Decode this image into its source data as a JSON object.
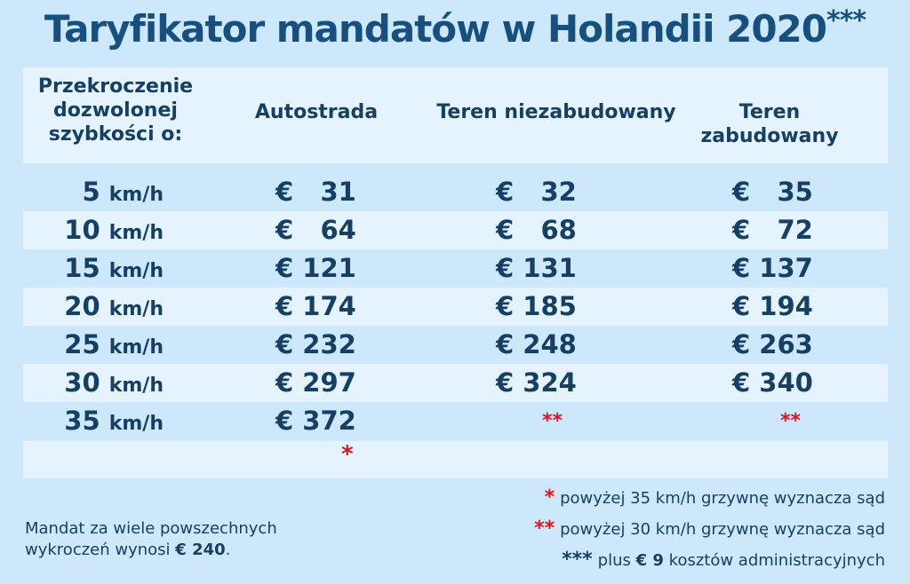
{
  "title": "Taryfikator mandatów w Holandii 2020",
  "title_mark": "***",
  "headers": {
    "speed": "Przekroczenie dozwolonej szybkości o:",
    "motorway": "Autostrada",
    "rural": "Teren niezabudowany",
    "urban": "Teren zabudowany"
  },
  "rows": [
    {
      "speed": "5",
      "unit": "km/h",
      "motorway": "€   31",
      "rural": "€   32",
      "urban": "€   35"
    },
    {
      "speed": "10",
      "unit": "km/h",
      "motorway": "€   64",
      "rural": "€   68",
      "urban": "€   72"
    },
    {
      "speed": "15",
      "unit": "km/h",
      "motorway": "€ 121",
      "rural": "€ 131",
      "urban": "€ 137"
    },
    {
      "speed": "20",
      "unit": "km/h",
      "motorway": "€ 174",
      "rural": "€ 185",
      "urban": "€ 194"
    },
    {
      "speed": "25",
      "unit": "km/h",
      "motorway": "€ 232",
      "rural": "€ 248",
      "urban": "€ 263"
    },
    {
      "speed": "30",
      "unit": "km/h",
      "motorway": "€ 297",
      "rural": "€ 324",
      "urban": "€ 340"
    },
    {
      "speed": "35",
      "unit": "km/h",
      "motorway": "€ 372",
      "rural": "**",
      "urban": "**"
    }
  ],
  "extra_mark": "*",
  "footnotes": [
    {
      "mark": "*",
      "text": "powyżej 35 km/h grzywnę wyznacza sąd"
    },
    {
      "mark": "**",
      "text": "powyżej 30 km/h grzywnę wyznacza sąd"
    },
    {
      "mark": "***",
      "text_before": "plus",
      "amount": "€ 9",
      "text_after": "kosztów administracyjnych"
    }
  ],
  "left_note": {
    "text": "Mandat za wiele powszechnych wykroczeń wynosi",
    "amount": "€ 240",
    "end": "."
  },
  "colors": {
    "background": "#cde8fb",
    "row_shade": "#e4f3fd",
    "text": "#163f66",
    "accent_red": "#e0141e"
  }
}
